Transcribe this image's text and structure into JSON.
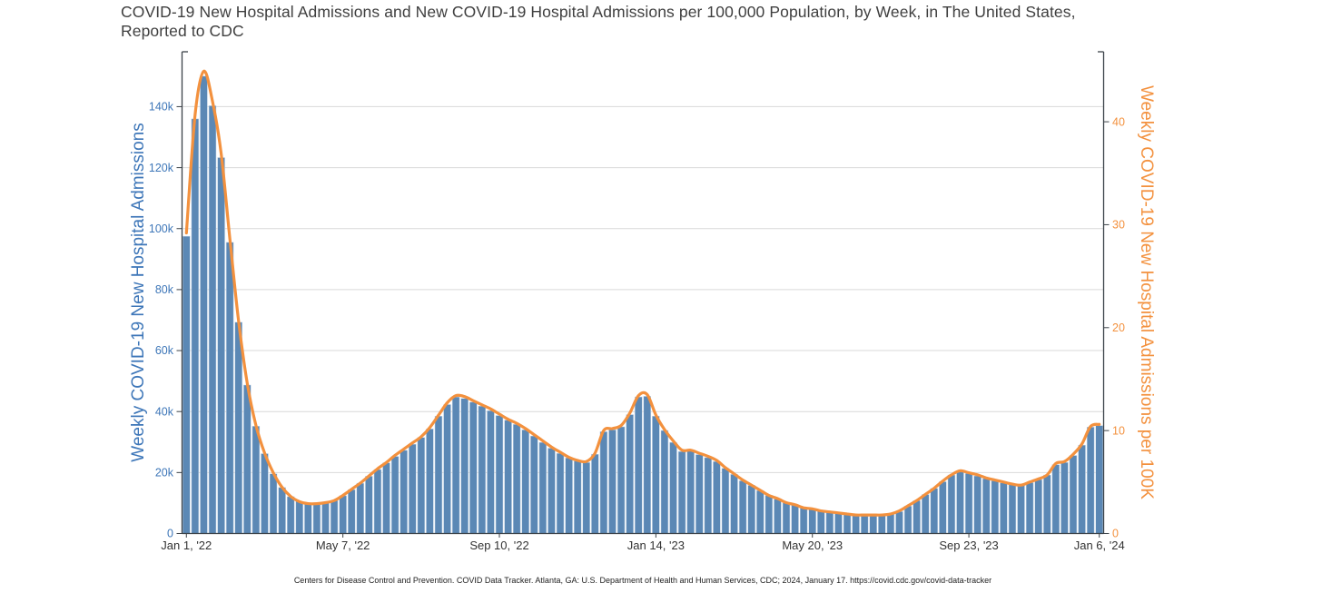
{
  "title": {
    "lines": [
      "COVID-19 New Hospital Admissions and New COVID-19 Hospital Admissions per 100,000 Population, by Week, in The United States,",
      "Reported to CDC"
    ],
    "color": "#3f3f3f"
  },
  "footer": {
    "text": "Centers for Disease Control and Prevention. COVID Data Tracker. Atlanta, GA: U.S. Department of Health and Human Services, CDC; 2024, January 17. https://covid.cdc.gov/covid-data-tracker"
  },
  "chart_data": {
    "type": "bar+line",
    "x": {
      "unit": "week",
      "count": 106,
      "tick_positions": [
        0,
        18,
        36,
        54,
        72,
        90,
        105
      ],
      "tick_labels": [
        "Jan 1, '22",
        "May 7, '22",
        "Sep 10, '22",
        "Jan 14, '23",
        "May 20, '23",
        "Sep 23, '23",
        "Jan 6, '24"
      ],
      "label_color": "#333333"
    },
    "y_left": {
      "title": "Weekly COVID-19 New Hospital Admissions",
      "color": "#3d76b8",
      "tick_values": [
        0,
        20000,
        40000,
        60000,
        80000,
        100000,
        120000,
        140000
      ],
      "tick_labels": [
        "0",
        "20k",
        "40k",
        "60k",
        "80k",
        "100k",
        "120k",
        "140k"
      ],
      "range": [
        0,
        158000
      ],
      "grid": true,
      "grid_color": "#d9d9d9"
    },
    "y_right": {
      "title": "Weekly COVID-19 New Hospital Admissions per 100K",
      "color": "#f3913e",
      "tick_values": [
        0,
        10,
        20,
        30,
        40
      ],
      "tick_labels": [
        "0",
        "10",
        "20",
        "30",
        "40"
      ],
      "range": [
        0,
        46.8
      ],
      "grid": false
    },
    "axis_line_color": "#3b4248",
    "series": [
      {
        "name": "Weekly COVID-19 New Hospital Admissions",
        "type": "bar",
        "axis": "left",
        "color": "#5b88b5",
        "bar_edge_color": "#c9d9ea",
        "values": [
          97500,
          136000,
          150000,
          140300,
          123300,
          95500,
          69300,
          48700,
          35200,
          26200,
          19600,
          15100,
          12100,
          10500,
          9800,
          9600,
          9900,
          10800,
          12400,
          14400,
          16500,
          18800,
          21000,
          23200,
          25300,
          27300,
          29300,
          31500,
          34300,
          38500,
          42300,
          44800,
          44300,
          43100,
          41800,
          40300,
          38700,
          37200,
          35800,
          34000,
          32000,
          29900,
          28000,
          26300,
          24800,
          23800,
          23300,
          26000,
          33400,
          34000,
          35000,
          39000,
          44800,
          45000,
          38500,
          33800,
          29900,
          26900,
          27200,
          25900,
          24900,
          23600,
          21400,
          19400,
          17300,
          15800,
          14100,
          12500,
          11300,
          10100,
          9300,
          8500,
          8100,
          7500,
          7100,
          6700,
          6400,
          6100,
          5900,
          5900,
          6100,
          6500,
          7200,
          9000,
          10800,
          12800,
          14800,
          17000,
          19200,
          20300,
          19700,
          18900,
          18000,
          17300,
          16600,
          16000,
          15800,
          16700,
          17700,
          19200,
          22600,
          23300,
          25600,
          29000,
          34900,
          35400
        ]
      },
      {
        "name": "Weekly COVID-19 New Hospital Admissions per 100K",
        "type": "line",
        "axis": "right",
        "color": "#f3913e",
        "line_width": 3.2,
        "values": [
          29.2,
          40.7,
          44.9,
          42.0,
          36.9,
          28.6,
          20.7,
          14.6,
          10.5,
          7.8,
          5.9,
          4.5,
          3.6,
          3.1,
          2.9,
          2.9,
          3.0,
          3.2,
          3.7,
          4.3,
          4.9,
          5.6,
          6.3,
          6.9,
          7.6,
          8.2,
          8.8,
          9.4,
          10.3,
          11.5,
          12.7,
          13.4,
          13.3,
          12.9,
          12.5,
          12.1,
          11.6,
          11.1,
          10.7,
          10.2,
          9.6,
          9.0,
          8.4,
          7.9,
          7.4,
          7.1,
          7.0,
          7.8,
          10.0,
          10.2,
          10.5,
          11.7,
          13.4,
          13.5,
          11.5,
          10.1,
          9.0,
          8.1,
          8.1,
          7.8,
          7.5,
          7.1,
          6.4,
          5.8,
          5.2,
          4.7,
          4.2,
          3.7,
          3.4,
          3.0,
          2.8,
          2.5,
          2.4,
          2.2,
          2.1,
          2.0,
          1.9,
          1.8,
          1.8,
          1.8,
          1.8,
          1.9,
          2.2,
          2.7,
          3.2,
          3.8,
          4.4,
          5.1,
          5.7,
          6.1,
          5.9,
          5.7,
          5.4,
          5.2,
          5.0,
          4.8,
          4.7,
          5.0,
          5.3,
          5.7,
          6.8,
          7.0,
          7.7,
          8.7,
          10.4,
          10.6
        ]
      }
    ]
  }
}
